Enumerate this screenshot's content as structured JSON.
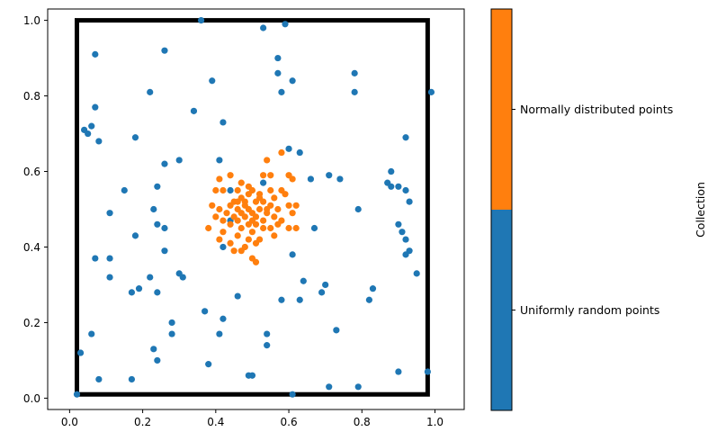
{
  "chart_data": {
    "type": "scatter",
    "title": "",
    "xlabel": "",
    "ylabel": "",
    "xlim": [
      -0.06,
      1.08
    ],
    "ylim": [
      -0.03,
      1.03
    ],
    "xticks": [
      "0.0",
      "0.2",
      "0.4",
      "0.6",
      "0.8",
      "1.0"
    ],
    "yticks": [
      "0.0",
      "0.2",
      "0.4",
      "0.6",
      "0.8",
      "1.0"
    ],
    "grid": false,
    "boundary_rectangle": {
      "x": [
        0.02,
        0.98
      ],
      "y": [
        0.01,
        1.0
      ],
      "color": "#000000"
    },
    "series": [
      {
        "name": "Uniformly random points",
        "color": "#1f77b4",
        "points": [
          [
            0.36,
            1.0
          ],
          [
            0.53,
            0.98
          ],
          [
            0.59,
            0.99
          ],
          [
            0.26,
            0.92
          ],
          [
            0.07,
            0.91
          ],
          [
            0.57,
            0.9
          ],
          [
            0.78,
            0.86
          ],
          [
            0.57,
            0.86
          ],
          [
            0.61,
            0.84
          ],
          [
            0.39,
            0.84
          ],
          [
            0.22,
            0.81
          ],
          [
            0.58,
            0.81
          ],
          [
            0.78,
            0.81
          ],
          [
            0.99,
            0.81
          ],
          [
            0.07,
            0.77
          ],
          [
            0.34,
            0.76
          ],
          [
            0.42,
            0.73
          ],
          [
            0.06,
            0.72
          ],
          [
            0.04,
            0.71
          ],
          [
            0.05,
            0.7
          ],
          [
            0.18,
            0.69
          ],
          [
            0.08,
            0.68
          ],
          [
            0.92,
            0.69
          ],
          [
            0.6,
            0.66
          ],
          [
            0.63,
            0.65
          ],
          [
            0.41,
            0.63
          ],
          [
            0.3,
            0.63
          ],
          [
            0.26,
            0.62
          ],
          [
            0.88,
            0.6
          ],
          [
            0.66,
            0.58
          ],
          [
            0.71,
            0.59
          ],
          [
            0.74,
            0.58
          ],
          [
            0.87,
            0.57
          ],
          [
            0.88,
            0.56
          ],
          [
            0.9,
            0.56
          ],
          [
            0.24,
            0.56
          ],
          [
            0.15,
            0.55
          ],
          [
            0.92,
            0.55
          ],
          [
            0.44,
            0.55
          ],
          [
            0.93,
            0.52
          ],
          [
            0.53,
            0.57
          ],
          [
            0.23,
            0.5
          ],
          [
            0.79,
            0.5
          ],
          [
            0.11,
            0.49
          ],
          [
            0.44,
            0.47
          ],
          [
            0.9,
            0.46
          ],
          [
            0.24,
            0.46
          ],
          [
            0.26,
            0.45
          ],
          [
            0.67,
            0.45
          ],
          [
            0.91,
            0.44
          ],
          [
            0.18,
            0.43
          ],
          [
            0.92,
            0.42
          ],
          [
            0.42,
            0.4
          ],
          [
            0.93,
            0.39
          ],
          [
            0.26,
            0.39
          ],
          [
            0.61,
            0.38
          ],
          [
            0.92,
            0.38
          ],
          [
            0.07,
            0.37
          ],
          [
            0.11,
            0.37
          ],
          [
            0.95,
            0.33
          ],
          [
            0.3,
            0.33
          ],
          [
            0.22,
            0.32
          ],
          [
            0.31,
            0.32
          ],
          [
            0.11,
            0.32
          ],
          [
            0.64,
            0.31
          ],
          [
            0.83,
            0.29
          ],
          [
            0.17,
            0.28
          ],
          [
            0.19,
            0.29
          ],
          [
            0.24,
            0.28
          ],
          [
            0.46,
            0.27
          ],
          [
            0.69,
            0.28
          ],
          [
            0.7,
            0.3
          ],
          [
            0.58,
            0.26
          ],
          [
            0.63,
            0.26
          ],
          [
            0.82,
            0.26
          ],
          [
            0.37,
            0.23
          ],
          [
            0.42,
            0.21
          ],
          [
            0.28,
            0.2
          ],
          [
            0.73,
            0.18
          ],
          [
            0.06,
            0.17
          ],
          [
            0.41,
            0.17
          ],
          [
            0.54,
            0.17
          ],
          [
            0.28,
            0.17
          ],
          [
            0.54,
            0.14
          ],
          [
            0.23,
            0.13
          ],
          [
            0.03,
            0.12
          ],
          [
            0.24,
            0.1
          ],
          [
            0.38,
            0.09
          ],
          [
            0.9,
            0.07
          ],
          [
            0.98,
            0.07
          ],
          [
            0.5,
            0.06
          ],
          [
            0.49,
            0.06
          ],
          [
            0.17,
            0.05
          ],
          [
            0.08,
            0.05
          ],
          [
            0.71,
            0.03
          ],
          [
            0.79,
            0.03
          ],
          [
            0.61,
            0.01
          ],
          [
            0.02,
            0.01
          ]
        ]
      },
      {
        "name": "Normally distributed points",
        "color": "#ff7f0e",
        "points": [
          [
            0.58,
            0.65
          ],
          [
            0.54,
            0.63
          ],
          [
            0.6,
            0.59
          ],
          [
            0.61,
            0.58
          ],
          [
            0.44,
            0.59
          ],
          [
            0.49,
            0.56
          ],
          [
            0.53,
            0.59
          ],
          [
            0.55,
            0.59
          ],
          [
            0.41,
            0.58
          ],
          [
            0.47,
            0.57
          ],
          [
            0.5,
            0.55
          ],
          [
            0.55,
            0.55
          ],
          [
            0.4,
            0.55
          ],
          [
            0.42,
            0.55
          ],
          [
            0.46,
            0.55
          ],
          [
            0.49,
            0.54
          ],
          [
            0.52,
            0.54
          ],
          [
            0.58,
            0.55
          ],
          [
            0.56,
            0.53
          ],
          [
            0.47,
            0.53
          ],
          [
            0.45,
            0.52
          ],
          [
            0.51,
            0.52
          ],
          [
            0.53,
            0.52
          ],
          [
            0.59,
            0.54
          ],
          [
            0.6,
            0.51
          ],
          [
            0.39,
            0.51
          ],
          [
            0.44,
            0.51
          ],
          [
            0.48,
            0.51
          ],
          [
            0.55,
            0.51
          ],
          [
            0.46,
            0.5
          ],
          [
            0.49,
            0.5
          ],
          [
            0.52,
            0.5
          ],
          [
            0.57,
            0.5
          ],
          [
            0.62,
            0.51
          ],
          [
            0.41,
            0.5
          ],
          [
            0.43,
            0.49
          ],
          [
            0.47,
            0.49
          ],
          [
            0.5,
            0.49
          ],
          [
            0.54,
            0.49
          ],
          [
            0.4,
            0.48
          ],
          [
            0.45,
            0.48
          ],
          [
            0.48,
            0.48
          ],
          [
            0.51,
            0.48
          ],
          [
            0.56,
            0.48
          ],
          [
            0.42,
            0.47
          ],
          [
            0.46,
            0.47
          ],
          [
            0.5,
            0.47
          ],
          [
            0.53,
            0.47
          ],
          [
            0.58,
            0.47
          ],
          [
            0.61,
            0.49
          ],
          [
            0.44,
            0.46
          ],
          [
            0.49,
            0.46
          ],
          [
            0.51,
            0.46
          ],
          [
            0.57,
            0.46
          ],
          [
            0.6,
            0.45
          ],
          [
            0.42,
            0.44
          ],
          [
            0.47,
            0.45
          ],
          [
            0.5,
            0.44
          ],
          [
            0.53,
            0.45
          ],
          [
            0.55,
            0.45
          ],
          [
            0.38,
            0.45
          ],
          [
            0.46,
            0.43
          ],
          [
            0.49,
            0.42
          ],
          [
            0.52,
            0.42
          ],
          [
            0.44,
            0.41
          ],
          [
            0.48,
            0.4
          ],
          [
            0.51,
            0.41
          ],
          [
            0.47,
            0.39
          ],
          [
            0.45,
            0.39
          ],
          [
            0.5,
            0.37
          ],
          [
            0.51,
            0.36
          ],
          [
            0.41,
            0.42
          ],
          [
            0.56,
            0.43
          ],
          [
            0.62,
            0.45
          ],
          [
            0.48,
            0.52
          ],
          [
            0.52,
            0.53
          ],
          [
            0.46,
            0.52
          ],
          [
            0.54,
            0.5
          ]
        ]
      }
    ],
    "colorbar": {
      "label": "Collection",
      "categories": [
        "Uniformly random points",
        "Normally distributed points"
      ],
      "colors": [
        "#1f77b4",
        "#ff7f0e"
      ]
    }
  }
}
